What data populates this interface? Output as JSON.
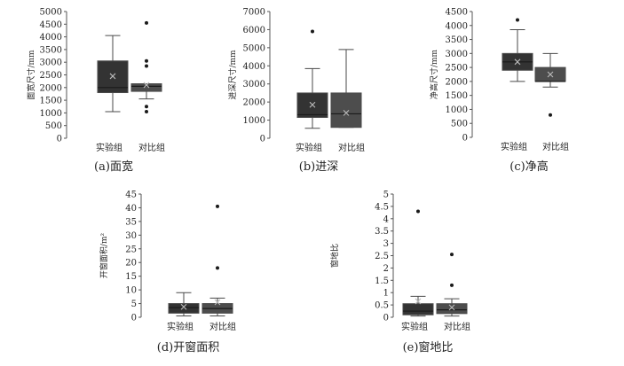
{
  "chart_data": [
    {
      "type": "box",
      "caption": "(a)面宽",
      "ylabel": "面宽尺寸/mm",
      "yticks": [
        "0",
        "500",
        "1000",
        "1500",
        "2000",
        "2500",
        "3000",
        "3500",
        "4000",
        "4500",
        "5000"
      ],
      "ylim": [
        0,
        5000
      ],
      "categories": [
        "实验组",
        "对比组"
      ],
      "series": [
        {
          "category": "实验组",
          "min": 1050,
          "q1": 1800,
          "median": 2000,
          "q3": 3050,
          "max": 4050,
          "mean": 2450,
          "outliers": []
        },
        {
          "category": "对比组",
          "min": 1550,
          "q1": 1850,
          "median": 2050,
          "q3": 2150,
          "max": 2150,
          "mean": 2100,
          "outliers": [
            4550,
            3050,
            2850,
            1250,
            1050
          ]
        }
      ]
    },
    {
      "type": "box",
      "caption": "(b)进深",
      "ylabel": "进深尺寸/mm",
      "yticks": [
        "0",
        "1000",
        "2000",
        "3000",
        "4000",
        "5000",
        "6000",
        "7000"
      ],
      "ylim": [
        0,
        7000
      ],
      "categories": [
        "实验组",
        "对比组"
      ],
      "series": [
        {
          "category": "实验组",
          "min": 550,
          "q1": 1150,
          "median": 1300,
          "q3": 2500,
          "max": 3850,
          "mean": 1850,
          "outliers": [
            5900
          ]
        },
        {
          "category": "对比组",
          "min": 600,
          "q1": 600,
          "median": 1350,
          "q3": 2500,
          "max": 4900,
          "mean": 1400,
          "outliers": []
        }
      ]
    },
    {
      "type": "box",
      "caption": "(c)净高",
      "ylabel": "净高尺寸/mm",
      "yticks": [
        "0",
        "500",
        "1000",
        "1500",
        "2000",
        "2500",
        "3000",
        "3500",
        "4000",
        "4500"
      ],
      "ylim": [
        0,
        4500
      ],
      "categories": [
        "实验组",
        "对比组"
      ],
      "series": [
        {
          "category": "实验组",
          "min": 2000,
          "q1": 2400,
          "median": 2700,
          "q3": 3000,
          "max": 3850,
          "mean": 2700,
          "outliers": [
            4200
          ]
        },
        {
          "category": "对比组",
          "min": 1800,
          "q1": 2000,
          "median": 2000,
          "q3": 2500,
          "max": 3000,
          "mean": 2250,
          "outliers": [
            800
          ]
        }
      ]
    },
    {
      "type": "box",
      "caption": "(d)开窗面积",
      "ylabel": "开窗面积/m²",
      "yticks": [
        "0",
        "5",
        "10",
        "15",
        "20",
        "25",
        "30",
        "35",
        "40",
        "45"
      ],
      "ylim": [
        0,
        45
      ],
      "categories": [
        "实验组",
        "对比组"
      ],
      "series": [
        {
          "category": "实验组",
          "min": 0.5,
          "q1": 1.5,
          "median": 3.5,
          "q3": 5,
          "max": 9,
          "mean": 3.8,
          "outliers": []
        },
        {
          "category": "对比组",
          "min": 0.5,
          "q1": 1.5,
          "median": 3.2,
          "q3": 5,
          "max": 7,
          "mean": 5.5,
          "outliers": [
            40.5,
            18
          ]
        }
      ]
    },
    {
      "type": "box",
      "caption": "(e)窗地比",
      "ylabel": "窗地比",
      "yticks": [
        "0",
        "0.5",
        "1",
        "1.5",
        "2",
        "2.5",
        "3",
        "3.5",
        "4",
        "4.5",
        "5"
      ],
      "ylim": [
        0,
        5
      ],
      "categories": [
        "实验组",
        "对比组"
      ],
      "series": [
        {
          "category": "实验组",
          "min": 0.05,
          "q1": 0.1,
          "median": 0.25,
          "q3": 0.55,
          "max": 0.85,
          "mean": 0.65,
          "outliers": [
            4.3
          ]
        },
        {
          "category": "对比组",
          "min": 0.05,
          "q1": 0.15,
          "median": 0.3,
          "q3": 0.55,
          "max": 0.75,
          "mean": 0.4,
          "outliers": [
            2.55,
            1.3
          ]
        }
      ]
    }
  ]
}
